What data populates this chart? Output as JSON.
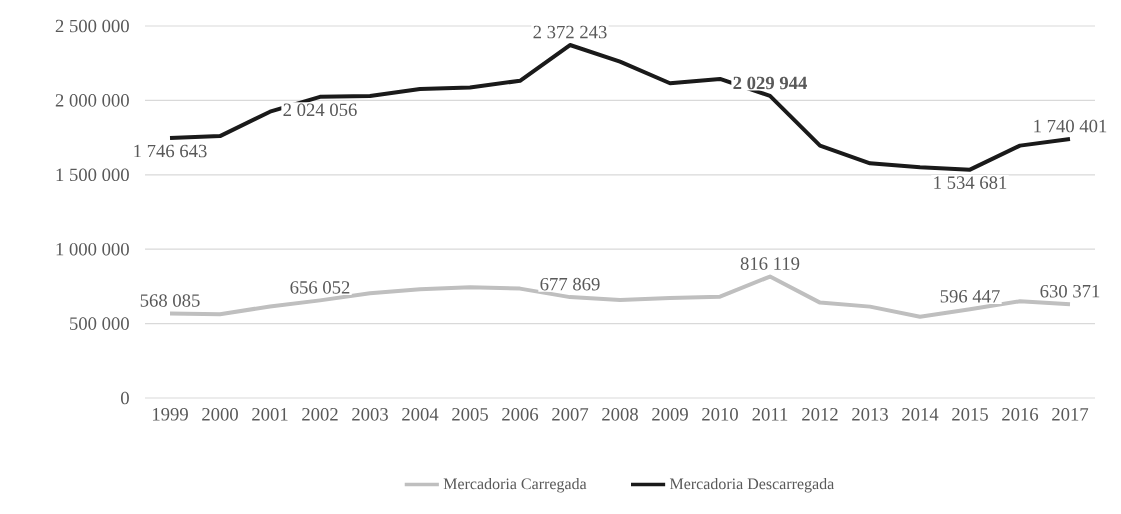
{
  "chart_data": {
    "type": "line",
    "categories": [
      "1999",
      "2000",
      "2001",
      "2002",
      "2003",
      "2004",
      "2005",
      "2006",
      "2007",
      "2008",
      "2009",
      "2010",
      "2011",
      "2012",
      "2013",
      "2014",
      "2015",
      "2016",
      "2017"
    ],
    "series": [
      {
        "name": "Mercadoria Carregada",
        "color": "#bfbfbf",
        "values": [
          568085,
          563000,
          615000,
          656052,
          704000,
          730000,
          744000,
          735000,
          677869,
          659000,
          672000,
          681000,
          816119,
          641000,
          614000,
          546000,
          596447,
          650000,
          630371
        ],
        "value_labels": [
          "568 085",
          null,
          null,
          "656 052",
          null,
          null,
          null,
          null,
          "677 869",
          null,
          null,
          null,
          "816 119",
          null,
          null,
          null,
          "596 447",
          null,
          "630 371"
        ]
      },
      {
        "name": "Mercadoria Descarregada",
        "color": "#1a1a1a",
        "values": [
          1746643,
          1760000,
          1924000,
          2024056,
          2030000,
          2077000,
          2087000,
          2132000,
          2372243,
          2260000,
          2115000,
          2144000,
          2029944,
          1696000,
          1577000,
          1550000,
          1534681,
          1696000,
          1740401
        ],
        "value_labels": [
          "1 746 643",
          null,
          null,
          "2 024 056",
          null,
          null,
          null,
          null,
          "2 372 243",
          null,
          null,
          null,
          "**2 029 944**",
          null,
          null,
          null,
          "1 534 681",
          null,
          "1 740 401"
        ]
      }
    ],
    "ylim": [
      0,
      2500000
    ],
    "yticks": [
      {
        "value": 0,
        "label": "0"
      },
      {
        "value": 500000,
        "label": "500 000"
      },
      {
        "value": 1000000,
        "label": "1 000 000"
      },
      {
        "value": 1500000,
        "label": "1 500 000"
      },
      {
        "value": 2000000,
        "label": "2 000 000"
      },
      {
        "value": 2500000,
        "label": "2 500 000"
      }
    ],
    "grid": "y",
    "legend": "bottom",
    "marker": "none",
    "line_style": "solid"
  }
}
